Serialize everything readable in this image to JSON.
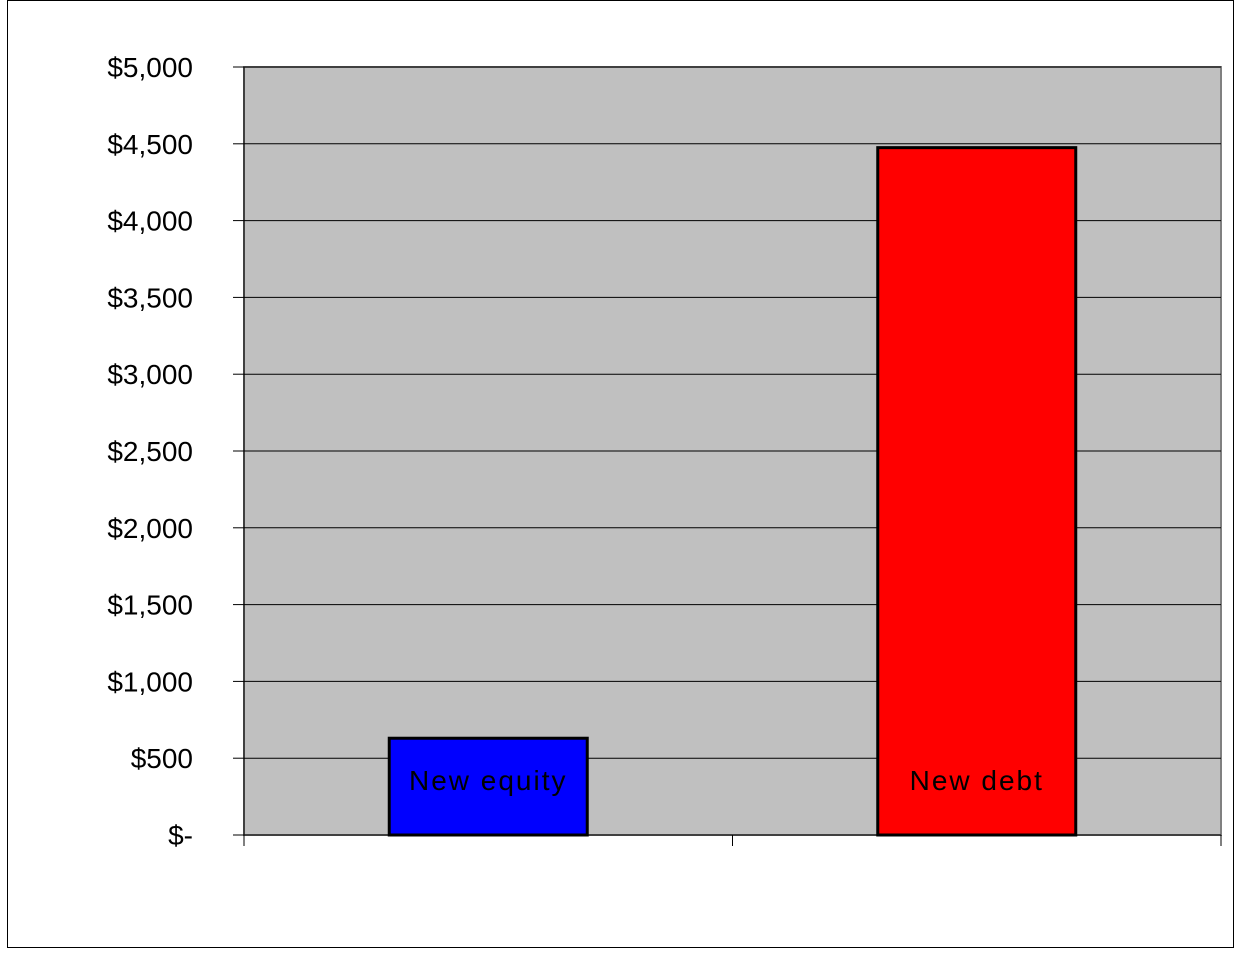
{
  "chart_data": {
    "type": "bar",
    "categories": [
      "New equity",
      "New debt"
    ],
    "values": [
      630,
      4475
    ],
    "ylim": [
      0,
      5000
    ],
    "yticks": [
      0,
      500,
      1000,
      1500,
      2000,
      2500,
      3000,
      3500,
      4000,
      4500,
      5000
    ],
    "ytick_labels": [
      "$-",
      "$500",
      "$1,000",
      "$1,500",
      "$2,000",
      "$2,500",
      "$3,000",
      "$3,500",
      "$4,000",
      "$4,500",
      "$5,000"
    ],
    "bar_colors": [
      "#0000ff",
      "#ff0000"
    ],
    "plot_background": "#c0c0c0",
    "grid": true,
    "legend": "none"
  }
}
